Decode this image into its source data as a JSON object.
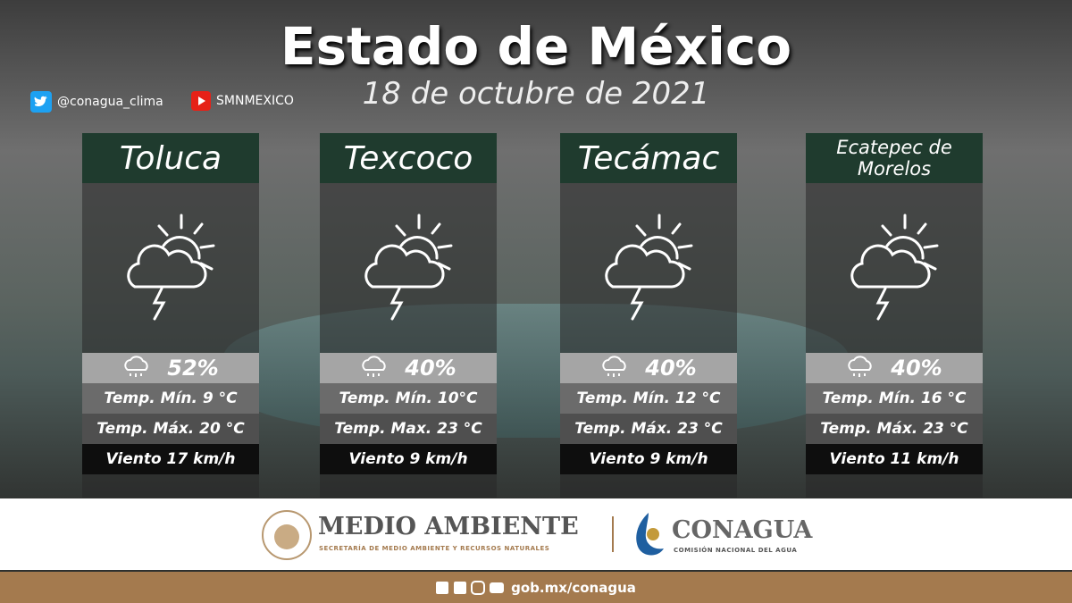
{
  "header": {
    "title": "Estado de México",
    "date": "18 de octubre de 2021"
  },
  "social": {
    "twitter": "@conagua_clima",
    "youtube": "SMNMEXICO"
  },
  "cards": [
    {
      "city": "Toluca",
      "rain": "52%",
      "min": "Temp. Mín. 9 °C",
      "max": "Temp. Máx. 20 °C",
      "wind": "Viento 17 km/h"
    },
    {
      "city": "Texcoco",
      "rain": "40%",
      "min": "Temp. Mín. 10°C",
      "max": "Temp. Max. 23 °C",
      "wind": "Viento 9 km/h"
    },
    {
      "city": "Tecámac",
      "rain": "40%",
      "min": "Temp. Mín. 12 °C",
      "max": "Temp. Máx. 23 °C",
      "wind": "Viento 9 km/h"
    },
    {
      "city": "Ecatepec de Morelos",
      "rain": "40%",
      "min": "Temp. Mín. 16 °C",
      "max": "Temp. Máx. 23 °C",
      "wind": "Viento 11 km/h"
    }
  ],
  "footer": {
    "semarnat": "MEDIO AMBIENTE",
    "semarnat_sub": "SECRETARÍA DE MEDIO AMBIENTE Y RECURSOS NATURALES",
    "conagua": "CONAGUA",
    "conagua_sub": "COMISIÓN NACIONAL DEL AGUA",
    "url": "gob.mx/conagua"
  }
}
